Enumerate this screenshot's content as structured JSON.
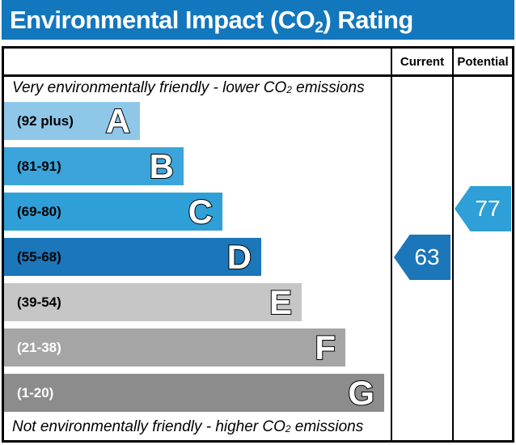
{
  "title": {
    "text_prefix": "Environmental Impact (CO",
    "subscript": "2",
    "text_suffix": ") Rating",
    "background_color": "#1277bd",
    "text_color": "#ffffff"
  },
  "header": {
    "current_label": "Current",
    "potential_label": "Potential"
  },
  "captions": {
    "top_prefix": "Very environmentally friendly - lower CO",
    "top_subscript": "2",
    "top_suffix": " emissions",
    "bottom_prefix": "Not environmentally friendly - higher CO",
    "bottom_subscript": "2",
    "bottom_suffix": " emissions"
  },
  "chart_data": {
    "type": "bar",
    "orientation": "horizontal",
    "title": "Environmental Impact (CO2) Rating",
    "columns": [
      "Current",
      "Potential"
    ],
    "bands": [
      {
        "letter": "A",
        "range_label": "(92 plus)",
        "color": "#8fc7e9",
        "label_color": "#000000",
        "bar_length": "168px"
      },
      {
        "letter": "B",
        "range_label": "(81-91)",
        "color": "#3ba4da",
        "label_color": "#000000",
        "bar_length": "222px"
      },
      {
        "letter": "C",
        "range_label": "(69-80)",
        "color": "#2f9fd7",
        "label_color": "#000000",
        "bar_length": "270px"
      },
      {
        "letter": "D",
        "range_label": "(55-68)",
        "color": "#1b76ba",
        "label_color": "#000000",
        "bar_length": "318px"
      },
      {
        "letter": "E",
        "range_label": "(39-54)",
        "color": "#c6c6c6",
        "label_color": "#000000",
        "bar_length": "368px"
      },
      {
        "letter": "F",
        "range_label": "(21-38)",
        "color": "#a5a5a5",
        "label_color": "#ffffff",
        "bar_length": "422px"
      },
      {
        "letter": "G",
        "range_label": "(1-20)",
        "color": "#8c8c8c",
        "label_color": "#ffffff",
        "bar_length": "470px"
      }
    ],
    "markers": {
      "current": {
        "label": "Current",
        "value": 63,
        "band": "D",
        "color": "#1b76ba"
      },
      "potential": {
        "label": "Potential",
        "value": 77,
        "band": "C",
        "color": "#2f9fd7"
      }
    }
  }
}
